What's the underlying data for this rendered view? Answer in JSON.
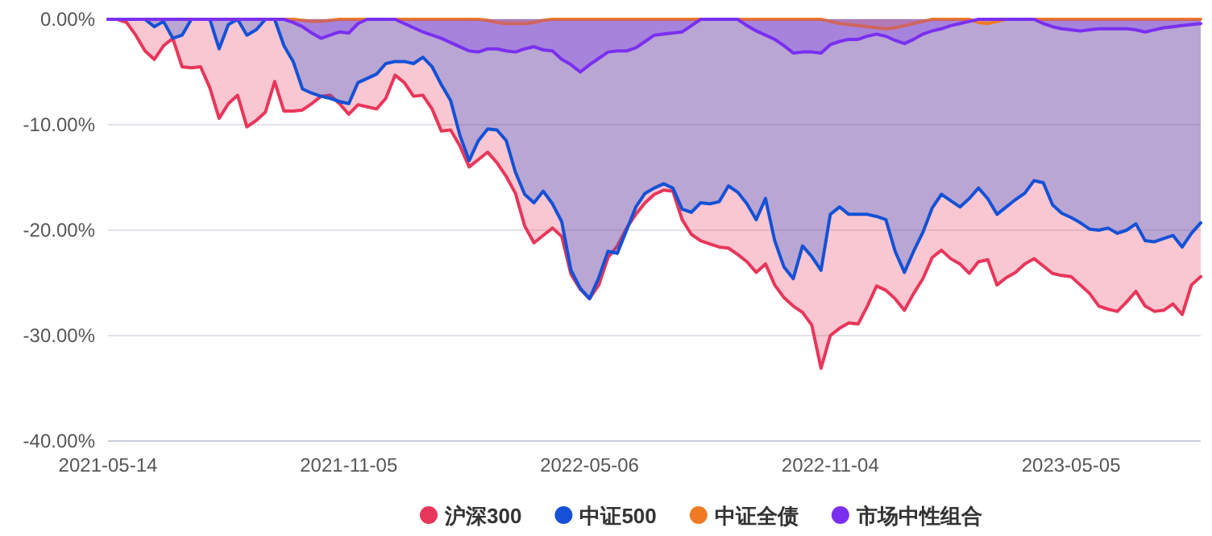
{
  "chart_data": {
    "type": "area",
    "categories": [
      "2021-05-14",
      null,
      null,
      null,
      null,
      null,
      null,
      null,
      null,
      null,
      null,
      null,
      null,
      null,
      null,
      null,
      null,
      null,
      null,
      null,
      null,
      null,
      null,
      null,
      null,
      null,
      "2021-11-05",
      null,
      null,
      null,
      null,
      null,
      null,
      null,
      null,
      null,
      null,
      null,
      null,
      null,
      null,
      null,
      null,
      null,
      null,
      null,
      null,
      null,
      null,
      null,
      null,
      null,
      "2022-05-06",
      null,
      null,
      null,
      null,
      null,
      null,
      null,
      null,
      null,
      null,
      null,
      null,
      null,
      null,
      null,
      null,
      null,
      null,
      null,
      null,
      null,
      null,
      null,
      null,
      null,
      "2022-11-04",
      null,
      null,
      null,
      null,
      null,
      null,
      null,
      null,
      null,
      null,
      null,
      null,
      null,
      null,
      null,
      null,
      null,
      null,
      null,
      null,
      null,
      null,
      null,
      null,
      null,
      "2023-05-05",
      null,
      null,
      null,
      null,
      null,
      null,
      null,
      null,
      null,
      null,
      null,
      null,
      null,
      null
    ],
    "ylim": [
      -40,
      0
    ],
    "yticks": [
      {
        "value": 0,
        "label": "0.00%"
      },
      {
        "value": -10,
        "label": "-10.00%"
      },
      {
        "value": -20,
        "label": "-20.00%"
      },
      {
        "value": -30,
        "label": "-30.00%"
      },
      {
        "value": -40,
        "label": "-40.00%"
      }
    ],
    "grid": "y",
    "legend": "bottom",
    "series": [
      {
        "name": "沪深300",
        "color": "#e8365a",
        "values": [
          0,
          0,
          -0.3,
          -1.5,
          -3.0,
          -3.8,
          -2.5,
          -1.8,
          -4.5,
          -4.6,
          -4.5,
          -6.5,
          -9.4,
          -8.0,
          -7.2,
          -10.2,
          -9.6,
          -8.8,
          -5.9,
          -8.7,
          -8.7,
          -8.6,
          -8.0,
          -7.3,
          -7.2,
          -8.0,
          -9.0,
          -8.1,
          -8.3,
          -8.5,
          -7.5,
          -5.3,
          -6.0,
          -7.3,
          -7.2,
          -8.5,
          -10.6,
          -10.5,
          -12.0,
          -14.0,
          -13.3,
          -12.6,
          -13.6,
          -14.9,
          -16.5,
          -19.6,
          -21.2,
          -20.5,
          -19.8,
          -20.6,
          -24.2,
          -25.6,
          -26.5,
          -25.2,
          -22.6,
          -21.5,
          -19.8,
          -18.5,
          -17.4,
          -16.6,
          -16.2,
          -16.3,
          -19.0,
          -20.4,
          -21.0,
          -21.3,
          -21.6,
          -21.7,
          -22.3,
          -23.0,
          -24.0,
          -23.2,
          -25.2,
          -26.4,
          -27.2,
          -27.8,
          -29.0,
          -33.1,
          -30.0,
          -29.3,
          -28.8,
          -28.9,
          -27.2,
          -25.3,
          -25.7,
          -26.5,
          -27.6,
          -26.0,
          -24.6,
          -22.6,
          -21.9,
          -22.7,
          -23.2,
          -24.1,
          -23.0,
          -22.8,
          -25.2,
          -24.5,
          -24.0,
          -23.2,
          -22.7,
          -23.4,
          -24.1,
          -24.3,
          -24.4,
          -25.2,
          -26.0,
          -27.2,
          -27.5,
          -27.7,
          -26.8,
          -25.8,
          -27.2,
          -27.7,
          -27.6,
          -27.0,
          -28.0,
          -25.2,
          -24.4
        ]
      },
      {
        "name": "中证500",
        "color": "#1451d6",
        "values": [
          0,
          0,
          0,
          0,
          0,
          -0.7,
          -0.2,
          -1.8,
          -1.5,
          0,
          0,
          0,
          -2.8,
          -0.5,
          0,
          -1.5,
          -1.0,
          0,
          0,
          -2.5,
          -4.0,
          -6.6,
          -7.0,
          -7.3,
          -7.5,
          -7.8,
          -8.0,
          -6.0,
          -5.6,
          -5.2,
          -4.2,
          -4.0,
          -4.0,
          -4.2,
          -3.6,
          -4.5,
          -6.2,
          -7.7,
          -11.0,
          -13.4,
          -11.5,
          -10.4,
          -10.5,
          -11.5,
          -14.5,
          -16.6,
          -17.4,
          -16.3,
          -17.5,
          -19.2,
          -23.8,
          -25.5,
          -26.5,
          -24.5,
          -22.0,
          -22.2,
          -20.0,
          -17.8,
          -16.5,
          -16.0,
          -15.6,
          -16.0,
          -18.0,
          -18.3,
          -17.4,
          -17.5,
          -17.3,
          -15.8,
          -16.4,
          -17.5,
          -19.0,
          -17.0,
          -21.0,
          -23.5,
          -24.6,
          -21.5,
          -22.5,
          -23.8,
          -18.5,
          -17.8,
          -18.5,
          -18.5,
          -18.5,
          -18.7,
          -19.0,
          -22.0,
          -24.0,
          -22.0,
          -20.2,
          -17.9,
          -16.6,
          -17.2,
          -17.8,
          -17.0,
          -16.0,
          -17.0,
          -18.5,
          -17.8,
          -17.1,
          -16.5,
          -15.3,
          -15.5,
          -17.6,
          -18.4,
          -18.8,
          -19.3,
          -19.9,
          -20.0,
          -19.8,
          -20.3,
          -20.0,
          -19.4,
          -21.0,
          -21.1,
          -20.8,
          -20.5,
          -21.6,
          -20.3,
          -19.3
        ]
      },
      {
        "name": "中证全债",
        "color": "#f07a24",
        "values": [
          0,
          0,
          0,
          0,
          0,
          0,
          0,
          0,
          0,
          0,
          0,
          0,
          0,
          0,
          0,
          0,
          0,
          0,
          0,
          0,
          0,
          -0.1,
          -0.2,
          -0.2,
          -0.1,
          0,
          0,
          0,
          0,
          0,
          0,
          0,
          0,
          0,
          0,
          0,
          0,
          0,
          0,
          0,
          0,
          -0.1,
          -0.3,
          -0.4,
          -0.4,
          -0.4,
          -0.3,
          -0.1,
          0,
          0,
          0,
          0,
          0,
          0,
          0,
          0,
          0,
          0,
          0,
          0,
          0,
          0,
          0,
          0,
          0,
          0,
          0,
          0,
          0,
          0,
          0,
          0,
          0,
          0,
          0,
          0,
          0,
          0,
          -0.2,
          -0.4,
          -0.5,
          -0.6,
          -0.7,
          -0.8,
          -0.9,
          -0.8,
          -0.6,
          -0.4,
          -0.2,
          0,
          0,
          0,
          0,
          0,
          -0.3,
          -0.4,
          -0.2,
          0,
          0,
          0,
          0,
          0,
          0,
          0,
          0,
          0,
          0,
          0,
          0,
          0,
          0,
          0,
          0,
          0,
          0,
          0,
          0,
          0,
          0
        ]
      },
      {
        "name": "市场中性组合",
        "color": "#7a2ff0",
        "values": [
          0,
          0,
          0,
          0,
          0,
          0,
          0,
          0,
          0,
          0,
          0,
          0,
          0,
          0,
          0,
          0,
          0,
          0,
          0,
          0,
          -0.3,
          -0.7,
          -1.3,
          -1.8,
          -1.5,
          -1.2,
          -1.3,
          -0.4,
          0,
          0,
          0,
          0,
          -0.4,
          -0.8,
          -1.2,
          -1.5,
          -1.8,
          -2.2,
          -2.6,
          -3.0,
          -3.1,
          -2.8,
          -2.8,
          -3.0,
          -3.1,
          -2.8,
          -2.6,
          -2.9,
          -3.0,
          -3.8,
          -4.3,
          -5.0,
          -4.3,
          -3.7,
          -3.1,
          -3.0,
          -3.0,
          -2.7,
          -2.1,
          -1.5,
          -1.4,
          -1.3,
          -1.2,
          -0.6,
          0,
          0,
          0,
          0,
          0,
          -0.6,
          -1.1,
          -1.5,
          -1.9,
          -2.5,
          -3.2,
          -3.1,
          -3.1,
          -3.2,
          -2.4,
          -2.1,
          -1.9,
          -1.9,
          -1.6,
          -1.4,
          -1.6,
          -2.0,
          -2.3,
          -1.9,
          -1.4,
          -1.1,
          -0.9,
          -0.6,
          -0.4,
          -0.2,
          0,
          0,
          0,
          0,
          0,
          0,
          0,
          -0.4,
          -0.7,
          -0.9,
          -1.0,
          -1.1,
          -1.0,
          -0.9,
          -0.9,
          -0.9,
          -0.9,
          -1.0,
          -1.2,
          -1.0,
          -0.8,
          -0.7,
          -0.6,
          -0.5,
          -0.4
        ]
      }
    ]
  }
}
